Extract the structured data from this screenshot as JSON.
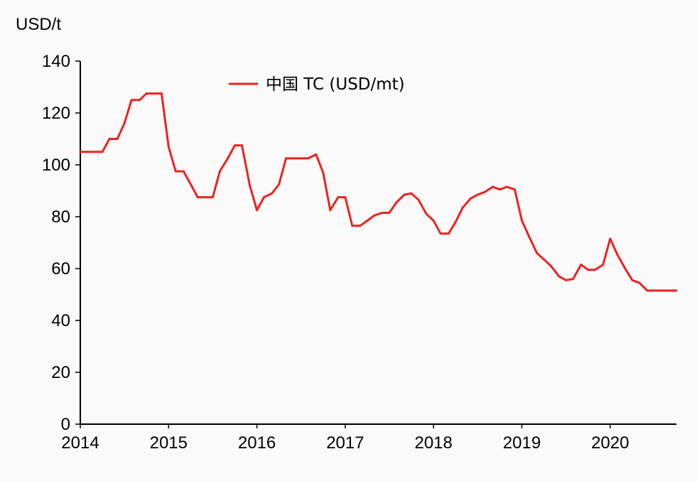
{
  "chart_data": {
    "type": "line",
    "title": "",
    "ylabel": "USD/t",
    "xlabel": "",
    "xlim": [
      2014,
      2020.75
    ],
    "ylim": [
      0,
      140
    ],
    "yticks": [
      0,
      20,
      40,
      60,
      80,
      100,
      120,
      140
    ],
    "xticks": [
      2014,
      2015,
      2016,
      2017,
      2018,
      2019,
      2020
    ],
    "xtick_labels": [
      "2014",
      "2015",
      "2016",
      "2017",
      "2018",
      "2019",
      "2020"
    ],
    "grid": false,
    "legend_position": "top-center",
    "series": [
      {
        "name": "中国 TC (USD/mt)",
        "color": "#ee2222",
        "x": [
          2014.0,
          2014.08,
          2014.17,
          2014.25,
          2014.33,
          2014.42,
          2014.5,
          2014.58,
          2014.67,
          2014.75,
          2014.83,
          2014.92,
          2015.0,
          2015.08,
          2015.17,
          2015.25,
          2015.33,
          2015.42,
          2015.5,
          2015.58,
          2015.67,
          2015.75,
          2015.83,
          2015.92,
          2016.0,
          2016.08,
          2016.17,
          2016.25,
          2016.33,
          2016.42,
          2016.5,
          2016.58,
          2016.67,
          2016.75,
          2016.83,
          2016.92,
          2017.0,
          2017.08,
          2017.17,
          2017.25,
          2017.33,
          2017.42,
          2017.5,
          2017.58,
          2017.67,
          2017.75,
          2017.83,
          2017.92,
          2018.0,
          2018.08,
          2018.17,
          2018.25,
          2018.33,
          2018.42,
          2018.5,
          2018.58,
          2018.67,
          2018.75,
          2018.83,
          2018.92,
          2019.0,
          2019.08,
          2019.17,
          2019.25,
          2019.33,
          2019.42,
          2019.5,
          2019.58,
          2019.67,
          2019.75,
          2019.83,
          2019.92,
          2020.0,
          2020.08,
          2020.17,
          2020.25,
          2020.33,
          2020.42,
          2020.5,
          2020.58,
          2020.67,
          2020.75
        ],
        "values": [
          105,
          105,
          105,
          105,
          110,
          110,
          116,
          125,
          125,
          127.5,
          127.5,
          127.5,
          107,
          97.5,
          97.5,
          92.5,
          87.5,
          87.5,
          87.5,
          97.5,
          102.5,
          107.5,
          107.5,
          92,
          82.5,
          87.5,
          89,
          92.5,
          102.5,
          102.5,
          102.5,
          102.5,
          104,
          97,
          82.5,
          87.5,
          87.5,
          76.5,
          76.5,
          78.5,
          80.5,
          81.5,
          81.5,
          85.5,
          88.5,
          89,
          86.5,
          81,
          78.5,
          73.5,
          73.5,
          78,
          83.5,
          87,
          88.5,
          89.5,
          91.5,
          90.5,
          91.5,
          90.5,
          78.5,
          72.5,
          66,
          63.5,
          61,
          57,
          55.5,
          56,
          61.5,
          59.5,
          59.5,
          61.5,
          71.5,
          65.5,
          60,
          55.5,
          54.5,
          51.5,
          51.5,
          51.5,
          51.5,
          51.5
        ]
      }
    ]
  }
}
